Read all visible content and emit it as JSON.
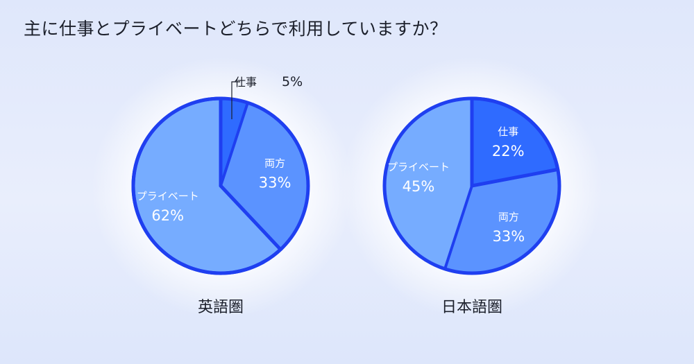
{
  "title": "主に仕事とプライベートどちらで利用していますか？",
  "colors": {
    "work": "#2f6bff",
    "both": "#5b93ff",
    "private": "#76acff",
    "outline": "#1f3ff0",
    "text_light": "#ffffff",
    "text_dark": "#1b1f2a"
  },
  "chart_data": [
    {
      "type": "pie",
      "title": "英語圏",
      "slices": [
        {
          "label": "仕事",
          "value": 5,
          "display": "5%"
        },
        {
          "label": "両方",
          "value": 33,
          "display": "33%"
        },
        {
          "label": "プライベート",
          "value": 62,
          "display": "62%"
        }
      ]
    },
    {
      "type": "pie",
      "title": "日本語圏",
      "slices": [
        {
          "label": "仕事",
          "value": 22,
          "display": "22%"
        },
        {
          "label": "両方",
          "value": 33,
          "display": "33%"
        },
        {
          "label": "プライベート",
          "value": 45,
          "display": "45%"
        }
      ]
    }
  ]
}
